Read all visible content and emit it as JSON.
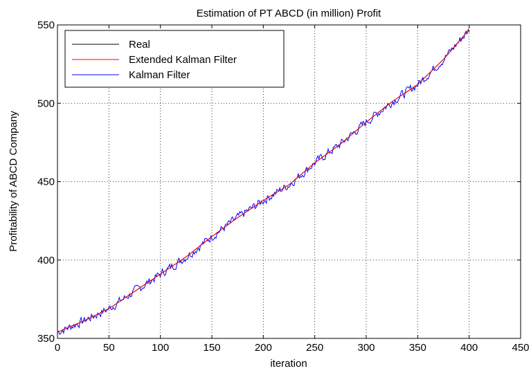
{
  "chart_data": {
    "type": "line",
    "title": "Estimation of PT ABCD (in million) Profit",
    "xlabel": "iteration",
    "ylabel": "Profitability of ABCD Company",
    "xlim": [
      0,
      450
    ],
    "ylim": [
      350,
      550
    ],
    "xticks": [
      0,
      50,
      100,
      150,
      200,
      250,
      300,
      350,
      400,
      450
    ],
    "yticks": [
      350,
      400,
      450,
      500,
      550
    ],
    "grid": true,
    "legend": "top-left",
    "series": [
      {
        "name": "Real",
        "color": "#000000",
        "x": [
          0,
          25,
          50,
          75,
          100,
          125,
          150,
          175,
          200,
          225,
          250,
          275,
          300,
          325,
          350,
          375,
          400
        ],
        "y": [
          354,
          361,
          369,
          380,
          391,
          402,
          415,
          427,
          438,
          448,
          462,
          474,
          488,
          501,
          512,
          528,
          547
        ]
      },
      {
        "name": "Extended Kalman Filter",
        "color": "#ff0000",
        "x": [
          0,
          25,
          50,
          75,
          100,
          125,
          150,
          175,
          200,
          225,
          250,
          275,
          300,
          325,
          350,
          375,
          400
        ],
        "y": [
          354,
          361,
          369,
          380,
          391,
          402,
          415,
          427,
          438,
          448,
          462,
          474,
          488,
          501,
          512,
          528,
          547
        ]
      },
      {
        "name": "Kalman Filter",
        "color": "#0000ff",
        "x": [
          0,
          25,
          50,
          75,
          100,
          125,
          150,
          175,
          200,
          225,
          250,
          275,
          300,
          325,
          350,
          375,
          400
        ],
        "y": [
          354,
          361,
          369,
          380,
          391,
          402,
          415,
          427,
          438,
          448,
          462,
          474,
          488,
          501,
          512,
          528,
          547
        ],
        "noise": 4
      }
    ]
  }
}
